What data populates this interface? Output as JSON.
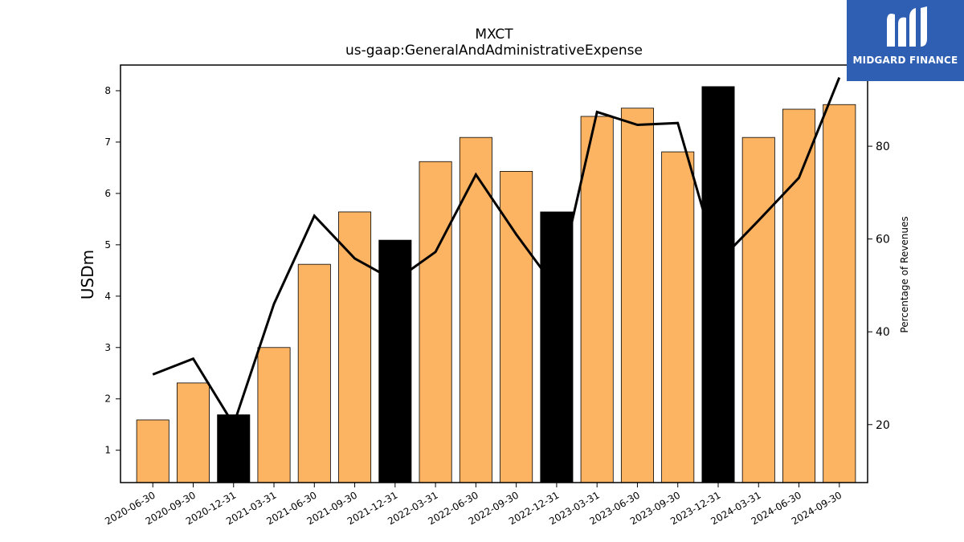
{
  "chart_data": {
    "type": "bar",
    "title": "MXCT",
    "subtitle": "us-gaap:GeneralAndAdministrativeExpense",
    "ylabel": "USDm",
    "y2label": "Percentage of Revenues",
    "categories": [
      "2020-06-30",
      "2020-09-30",
      "2020-12-31",
      "2021-03-31",
      "2021-06-30",
      "2021-09-30",
      "2021-12-31",
      "2022-03-31",
      "2022-06-30",
      "2022-09-30",
      "2022-12-31",
      "2023-03-31",
      "2023-06-30",
      "2023-09-30",
      "2023-12-31",
      "2024-03-31",
      "2024-06-30",
      "2024-09-30"
    ],
    "series": [
      {
        "values": [
          1.59,
          2.31,
          1.69,
          3.0,
          4.62,
          5.64,
          5.09,
          6.62,
          7.09,
          6.43,
          5.64,
          7.5,
          7.66,
          6.81,
          8.08,
          7.09,
          7.64,
          7.73
        ],
        "highlight": [
          false,
          false,
          true,
          false,
          false,
          false,
          true,
          false,
          false,
          false,
          true,
          false,
          false,
          false,
          true,
          false,
          false,
          false
        ],
        "color": "#fdb462",
        "highlight_color": "#000000"
      },
      {
        "type": "line",
        "axis": "right",
        "values": [
          30.8,
          34.2,
          20.0,
          46.0,
          65.0,
          55.8,
          51.0,
          57.2,
          73.9,
          61.0,
          49.2,
          87.4,
          84.6,
          85.0,
          55.0,
          64.0,
          73.2,
          94.8
        ],
        "color": "#000000"
      }
    ],
    "ylim": [
      0.37,
      8.5
    ],
    "yticks": [
      1,
      2,
      3,
      4,
      5,
      6,
      7,
      8
    ],
    "y2lim": [
      7.5,
      97.5
    ],
    "y2ticks": [
      20,
      40,
      60,
      80
    ],
    "grid": false
  },
  "logo": {
    "text": "MIDGARD FINANCE",
    "color": "#2f5fb3"
  }
}
